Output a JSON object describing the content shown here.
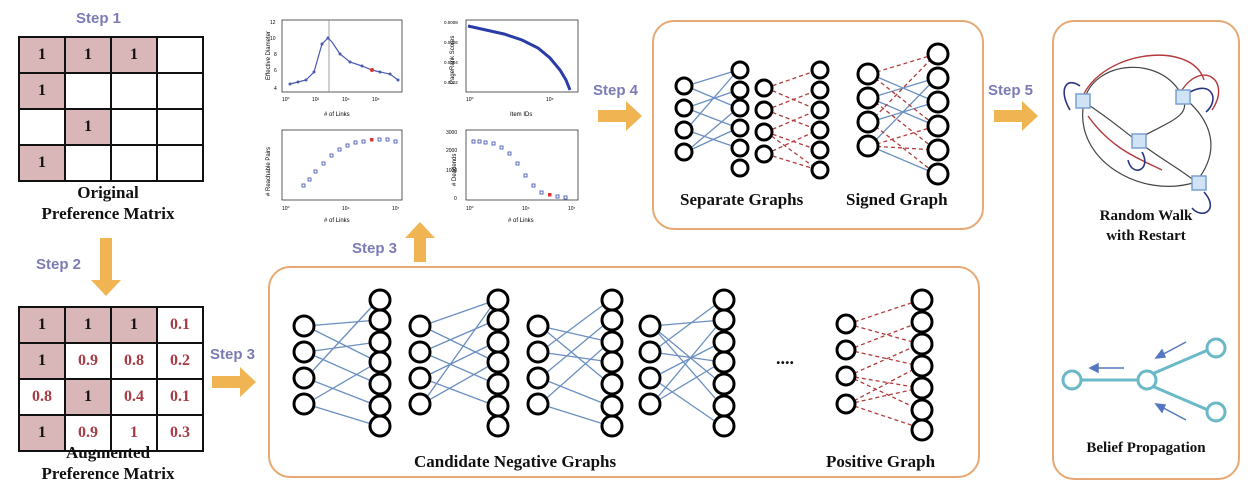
{
  "steps": {
    "step1": "Step 1",
    "step2": "Step 2",
    "step3_left": "Step 3",
    "step3_up": "Step 3",
    "step4": "Step 4",
    "step5": "Step 5"
  },
  "original_matrix": {
    "caption_line1": "Original",
    "caption_line2": "Preference Matrix",
    "rows": [
      [
        "1",
        "1",
        "1",
        ""
      ],
      [
        "1",
        "",
        "",
        ""
      ],
      [
        "",
        "1",
        "",
        ""
      ],
      [
        "1",
        "",
        "",
        ""
      ]
    ],
    "filled": [
      [
        1,
        1,
        1,
        0
      ],
      [
        1,
        0,
        0,
        0
      ],
      [
        0,
        1,
        0,
        0
      ],
      [
        1,
        0,
        0,
        0
      ]
    ]
  },
  "augmented_matrix": {
    "caption_line1": "Augmented",
    "caption_line2": "Preference Matrix",
    "rows": [
      [
        "1",
        "1",
        "1",
        "0.1"
      ],
      [
        "1",
        "0.9",
        "0.8",
        "0.2"
      ],
      [
        "0.8",
        "1",
        "0.4",
        "0.1"
      ],
      [
        "1",
        "0.9",
        "1",
        "0.3"
      ]
    ],
    "filled": [
      [
        1,
        1,
        1,
        0
      ],
      [
        1,
        0,
        0,
        0
      ],
      [
        0,
        1,
        0,
        0
      ],
      [
        1,
        0,
        0,
        0
      ]
    ]
  },
  "plots": [
    {
      "ylabel": "Effective Diameter",
      "xlabel": "# of Links"
    },
    {
      "ylabel": "PageRank Scores",
      "xlabel": "Item IDs"
    },
    {
      "ylabel": "# Reachable Pairs",
      "xlabel": "# of Links"
    },
    {
      "ylabel": "# Deadends",
      "xlabel": "# of Links"
    }
  ],
  "candidate_panel": {
    "candidate_label": "Candidate  Negative Graphs",
    "positive_label": "Positive Graph",
    "ellipsis": "...."
  },
  "signed_panel": {
    "separate_label": "Separate Graphs",
    "signed_label": "Signed Graph"
  },
  "final_panel": {
    "rwr_line1": "Random Walk",
    "rwr_line2": "with Restart",
    "bp_label": "Belief Propagation"
  },
  "colors": {
    "panel_border": "#e8a873",
    "arrow": "#f0b552",
    "step_text": "#7b7bb5",
    "matrix_fill": "#d9b6b8",
    "matrix_red_text": "#a63a45",
    "blue_edge": "#6a8fc0",
    "red_dashed_edge": "#b23a3a",
    "bp_teal": "#6ab8c8"
  }
}
